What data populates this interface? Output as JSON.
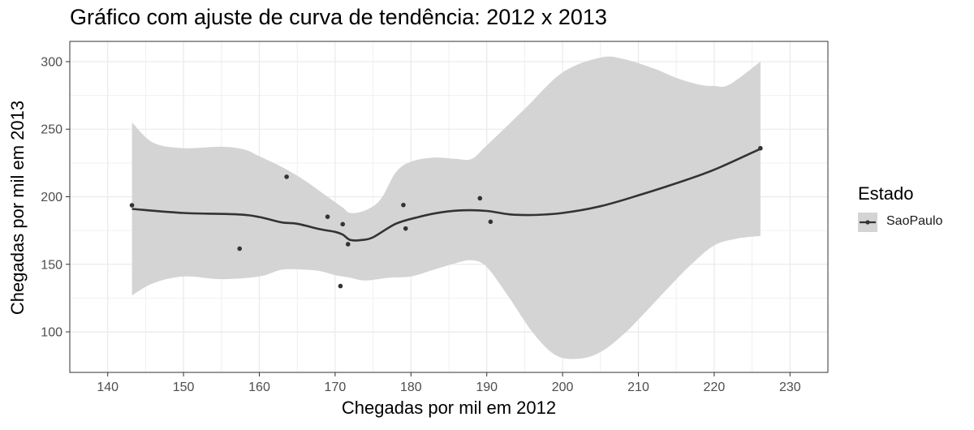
{
  "chart_data": {
    "type": "scatter",
    "title": "Gráfico com ajuste de curva de tendência: 2012 x 2013",
    "xlabel": "Chegadas por mil em 2012",
    "ylabel": "Chegadas por mil em 2013",
    "xlim": [
      135,
      235
    ],
    "ylim": [
      70,
      315
    ],
    "xticks": [
      140,
      150,
      160,
      170,
      180,
      190,
      200,
      210,
      220,
      230
    ],
    "yticks": [
      100,
      150,
      200,
      250,
      300
    ],
    "grid": true,
    "legend": {
      "title": "Estado",
      "position": "right",
      "entries": [
        "SaoPaulo"
      ]
    },
    "series": [
      {
        "name": "SaoPaulo",
        "color": "#333333",
        "points": [
          [
            143.2,
            193.7
          ],
          [
            157.4,
            161.6
          ],
          [
            163.6,
            214.8
          ],
          [
            169.0,
            185.2
          ],
          [
            170.7,
            133.9
          ],
          [
            171.0,
            179.7
          ],
          [
            171.7,
            164.9
          ],
          [
            179.0,
            193.9
          ],
          [
            179.3,
            176.5
          ],
          [
            189.1,
            198.9
          ],
          [
            190.5,
            181.5
          ],
          [
            226.1,
            235.9
          ]
        ],
        "smooth": [
          [
            143.2,
            191
          ],
          [
            150,
            188
          ],
          [
            157,
            187
          ],
          [
            160,
            185
          ],
          [
            163,
            181
          ],
          [
            165,
            180
          ],
          [
            168,
            176
          ],
          [
            170,
            174
          ],
          [
            171,
            172
          ],
          [
            172,
            168
          ],
          [
            173.5,
            168
          ],
          [
            175,
            170
          ],
          [
            178,
            180
          ],
          [
            181,
            185
          ],
          [
            184,
            188.5
          ],
          [
            187,
            190
          ],
          [
            190,
            189.5
          ],
          [
            193,
            187
          ],
          [
            196,
            186.5
          ],
          [
            200,
            188
          ],
          [
            205,
            193
          ],
          [
            210,
            201
          ],
          [
            215,
            210
          ],
          [
            220,
            220
          ],
          [
            226.1,
            235.5
          ]
        ],
        "ci_upper": [
          [
            143.2,
            255
          ],
          [
            146,
            240
          ],
          [
            150,
            236
          ],
          [
            155,
            237
          ],
          [
            158,
            235
          ],
          [
            160,
            230
          ],
          [
            163,
            222
          ],
          [
            166,
            212
          ],
          [
            169,
            200
          ],
          [
            171,
            192
          ],
          [
            172,
            188
          ],
          [
            174,
            190
          ],
          [
            176,
            198
          ],
          [
            178,
            218
          ],
          [
            180,
            226
          ],
          [
            183,
            229
          ],
          [
            186,
            228
          ],
          [
            188,
            228
          ],
          [
            190,
            238
          ],
          [
            195,
            265
          ],
          [
            200,
            292
          ],
          [
            205,
            303
          ],
          [
            208,
            302
          ],
          [
            212,
            295
          ],
          [
            215,
            288
          ],
          [
            218,
            283
          ],
          [
            220,
            282
          ],
          [
            222,
            283
          ],
          [
            226.1,
            300
          ]
        ],
        "ci_lower": [
          [
            143.2,
            127
          ],
          [
            146,
            136
          ],
          [
            150,
            141
          ],
          [
            155,
            139
          ],
          [
            160,
            141
          ],
          [
            163,
            146
          ],
          [
            166,
            146
          ],
          [
            168,
            145
          ],
          [
            170,
            142
          ],
          [
            171,
            141
          ],
          [
            172,
            140
          ],
          [
            174,
            138
          ],
          [
            177,
            140
          ],
          [
            180,
            141
          ],
          [
            183,
            146
          ],
          [
            186,
            151
          ],
          [
            188,
            153
          ],
          [
            190,
            148
          ],
          [
            193,
            125
          ],
          [
            196,
            100
          ],
          [
            199,
            83
          ],
          [
            202,
            80
          ],
          [
            205,
            85
          ],
          [
            208,
            98
          ],
          [
            211,
            115
          ],
          [
            214,
            133
          ],
          [
            217,
            150
          ],
          [
            220,
            164
          ],
          [
            223,
            169
          ],
          [
            226.1,
            171
          ]
        ]
      }
    ],
    "ribbon_color": "#d4d4d4"
  }
}
